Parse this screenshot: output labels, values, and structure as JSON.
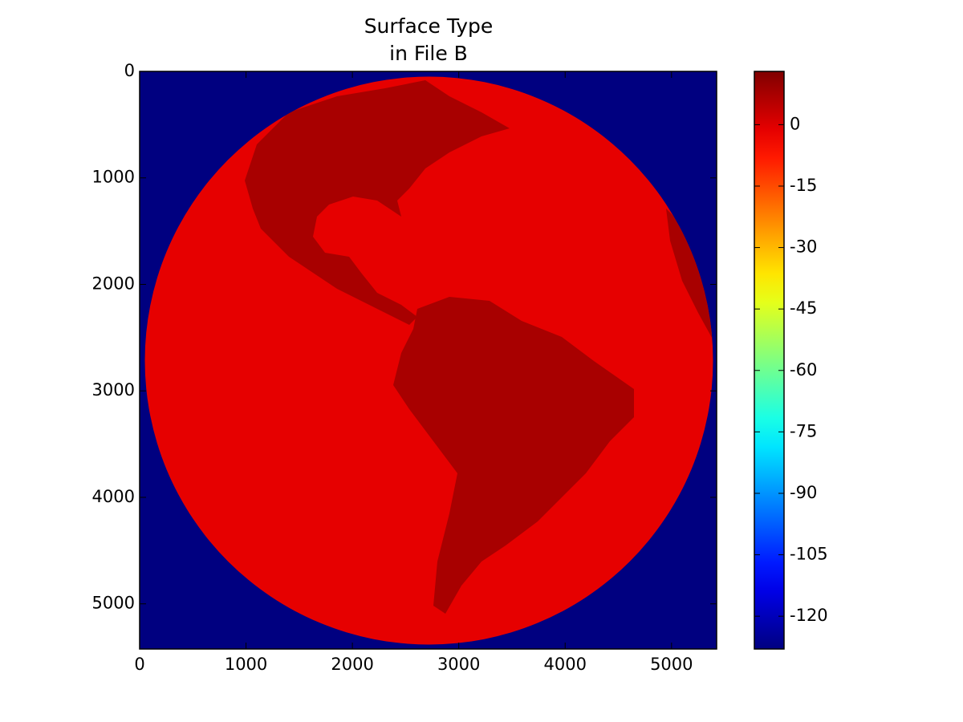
{
  "chart_data": {
    "type": "image",
    "title": "Surface Type",
    "subtitle": "in File B",
    "xlim": [
      0,
      5424
    ],
    "ylim": [
      5424,
      0
    ],
    "xticks": [
      0,
      1000,
      2000,
      3000,
      4000,
      5000
    ],
    "yticks": [
      0,
      1000,
      2000,
      3000,
      4000,
      5000
    ],
    "colorbar": {
      "cmap": "jet",
      "clim": [
        -128,
        13
      ],
      "ticks": [
        0,
        -15,
        -30,
        -45,
        -60,
        -75,
        -90,
        -105,
        -120
      ]
    }
  }
}
